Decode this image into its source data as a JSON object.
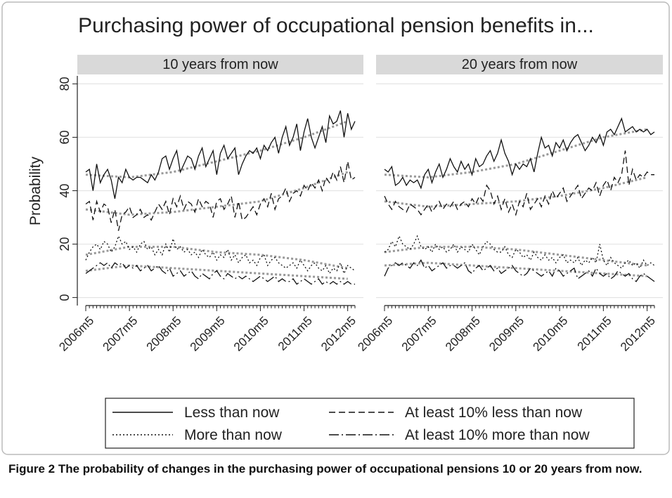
{
  "figure": {
    "title": "Purchasing power of occupational pension benefits in...",
    "ylabel": "Probability",
    "caption": "Figure 2 The probability of changes in the purchasing power of occupational pensions 10 or 20 years from now."
  },
  "chart_data": [
    {
      "type": "line",
      "panel": "10 years from now",
      "ylim": [
        -3,
        83
      ],
      "yticks": [
        0,
        20,
        40,
        60,
        80
      ],
      "grid": true,
      "x": [
        "2006m5",
        "2006m6",
        "2006m7",
        "2006m8",
        "2006m9",
        "2006m10",
        "2006m11",
        "2006m12",
        "2007m1",
        "2007m2",
        "2007m3",
        "2007m4",
        "2007m5",
        "2007m6",
        "2007m7",
        "2007m8",
        "2007m9",
        "2007m10",
        "2007m11",
        "2007m12",
        "2008m1",
        "2008m2",
        "2008m3",
        "2008m4",
        "2008m5",
        "2008m6",
        "2008m7",
        "2008m8",
        "2008m9",
        "2008m10",
        "2008m11",
        "2008m12",
        "2009m1",
        "2009m2",
        "2009m3",
        "2009m4",
        "2009m5",
        "2009m6",
        "2009m7",
        "2009m8",
        "2009m9",
        "2009m10",
        "2009m11",
        "2009m12",
        "2010m1",
        "2010m2",
        "2010m3",
        "2010m4",
        "2010m5",
        "2010m6",
        "2010m7",
        "2010m8",
        "2010m9",
        "2010m10",
        "2010m11",
        "2010m12",
        "2011m1",
        "2011m2",
        "2011m3",
        "2011m4",
        "2011m5",
        "2011m6",
        "2011m7",
        "2011m8",
        "2011m9",
        "2011m10",
        "2011m11",
        "2011m12",
        "2012m1",
        "2012m2",
        "2012m3",
        "2012m4",
        "2012m5",
        "2012m6",
        "2012m7"
      ],
      "xticks": [
        "2006m5",
        "2007m5",
        "2008m5",
        "2009m5",
        "2010m5",
        "2011m5",
        "2012m5"
      ],
      "trend_color": "#999999",
      "series": [
        {
          "name": "Less than now",
          "color": "#111111",
          "dash": "none",
          "values": [
            47,
            48,
            40,
            50,
            43,
            46,
            48,
            44,
            37,
            45,
            43,
            48,
            45,
            44,
            45,
            45,
            44,
            43,
            46,
            44,
            47,
            52,
            53,
            48,
            52,
            55,
            47,
            50,
            53,
            52,
            48,
            53,
            56,
            49,
            52,
            55,
            46,
            54,
            57,
            52,
            54,
            56,
            46,
            50,
            53,
            55,
            54,
            56,
            52,
            57,
            55,
            58,
            60,
            54,
            60,
            64,
            57,
            60,
            65,
            55,
            62,
            67,
            60,
            56,
            60,
            64,
            58,
            68,
            65,
            66,
            70,
            60,
            69,
            63,
            66
          ],
          "trend": [
            46,
            45,
            47,
            51,
            55,
            60,
            66
          ]
        },
        {
          "name": "At least 10% less than now",
          "color": "#111111",
          "dash": "9,5",
          "values": [
            35,
            36,
            29,
            36,
            32,
            35,
            34,
            28,
            33,
            25,
            31,
            32,
            34,
            30,
            31,
            33,
            30,
            31,
            29,
            32,
            35,
            33,
            36,
            31,
            37,
            34,
            38,
            33,
            36,
            35,
            32,
            37,
            34,
            36,
            35,
            30,
            36,
            37,
            33,
            35,
            38,
            30,
            36,
            29,
            30,
            32,
            34,
            31,
            35,
            37,
            34,
            39,
            33,
            37,
            38,
            41,
            36,
            39,
            40,
            38,
            42,
            40,
            43,
            41,
            44,
            40,
            45,
            43,
            47,
            44,
            49,
            43,
            51,
            44,
            45
          ],
          "trend": [
            33,
            31,
            32,
            34,
            36,
            41,
            47
          ]
        },
        {
          "name": "More than now",
          "color": "#111111",
          "dash": "2,3",
          "values": [
            14,
            17,
            19,
            20,
            18,
            21,
            20,
            17,
            19,
            23,
            20,
            21,
            18,
            19,
            17,
            20,
            21,
            18,
            19,
            16,
            18,
            16,
            20,
            17,
            22,
            18,
            19,
            17,
            18,
            16,
            17,
            15,
            18,
            16,
            15,
            17,
            14,
            16,
            15,
            18,
            14,
            16,
            13,
            15,
            16,
            13,
            14,
            12,
            15,
            16,
            12,
            14,
            15,
            13,
            12,
            11,
            12,
            13,
            11,
            14,
            12,
            10,
            12,
            13,
            11,
            10,
            12,
            9,
            11,
            10,
            13,
            9,
            12,
            11,
            10
          ],
          "trend": [
            16,
            19,
            19,
            17,
            16,
            14,
            11
          ]
        },
        {
          "name": "At least 10% more than now",
          "color": "#111111",
          "dash": "14,4,2,4",
          "values": [
            9,
            10,
            11,
            12,
            13,
            12,
            13,
            11,
            13,
            12,
            13,
            11,
            12,
            11,
            12,
            10,
            11,
            12,
            10,
            11,
            12,
            10,
            9,
            11,
            8,
            9,
            10,
            8,
            9,
            10,
            8,
            7,
            9,
            8,
            7,
            9,
            10,
            8,
            7,
            9,
            8,
            7,
            8,
            7,
            8,
            7,
            6,
            7,
            8,
            7,
            6,
            7,
            8,
            6,
            7,
            6,
            6,
            7,
            5,
            6,
            7,
            6,
            5,
            6,
            7,
            5,
            6,
            5,
            6,
            5,
            6,
            5,
            6,
            5,
            5
          ],
          "trend": [
            10,
            12,
            11,
            10,
            9,
            8,
            7
          ]
        }
      ]
    },
    {
      "type": "line",
      "panel": "20 years from now",
      "ylim": [
        -3,
        83
      ],
      "yticks": [
        0,
        20,
        40,
        60,
        80
      ],
      "grid": true,
      "x": [
        "2006m5",
        "2006m6",
        "2006m7",
        "2006m8",
        "2006m9",
        "2006m10",
        "2006m11",
        "2006m12",
        "2007m1",
        "2007m2",
        "2007m3",
        "2007m4",
        "2007m5",
        "2007m6",
        "2007m7",
        "2007m8",
        "2007m9",
        "2007m10",
        "2007m11",
        "2007m12",
        "2008m1",
        "2008m2",
        "2008m3",
        "2008m4",
        "2008m5",
        "2008m6",
        "2008m7",
        "2008m8",
        "2008m9",
        "2008m10",
        "2008m11",
        "2008m12",
        "2009m1",
        "2009m2",
        "2009m3",
        "2009m4",
        "2009m5",
        "2009m6",
        "2009m7",
        "2009m8",
        "2009m9",
        "2009m10",
        "2009m11",
        "2009m12",
        "2010m1",
        "2010m2",
        "2010m3",
        "2010m4",
        "2010m5",
        "2010m6",
        "2010m7",
        "2010m8",
        "2010m9",
        "2010m10",
        "2010m11",
        "2010m12",
        "2011m1",
        "2011m2",
        "2011m3",
        "2011m4",
        "2011m5",
        "2011m6",
        "2011m7",
        "2011m8",
        "2011m9",
        "2011m10",
        "2011m11",
        "2011m12",
        "2012m1",
        "2012m2",
        "2012m3",
        "2012m4",
        "2012m5",
        "2012m6",
        "2012m7"
      ],
      "xticks": [
        "2006m5",
        "2007m5",
        "2008m5",
        "2009m5",
        "2010m5",
        "2011m5",
        "2012m5"
      ],
      "trend_color": "#999999",
      "series": [
        {
          "name": "Less than now",
          "color": "#111111",
          "dash": "none",
          "values": [
            48,
            47,
            49,
            42,
            43,
            45,
            42,
            44,
            43,
            44,
            41,
            46,
            48,
            43,
            47,
            50,
            45,
            48,
            52,
            49,
            47,
            51,
            48,
            50,
            46,
            52,
            49,
            50,
            53,
            55,
            51,
            54,
            59,
            54,
            51,
            46,
            50,
            48,
            50,
            49,
            52,
            47,
            54,
            60,
            56,
            57,
            53,
            58,
            56,
            59,
            55,
            58,
            60,
            61,
            58,
            55,
            57,
            60,
            58,
            61,
            57,
            62,
            63,
            61,
            64,
            67,
            62,
            63,
            64,
            62,
            63,
            62,
            63,
            61,
            62
          ],
          "trend": [
            46,
            45,
            47,
            50,
            55,
            60,
            63
          ]
        },
        {
          "name": "At least 10% less than now",
          "color": "#111111",
          "dash": "9,5",
          "values": [
            38,
            35,
            33,
            36,
            34,
            33,
            32,
            35,
            34,
            33,
            31,
            33,
            35,
            32,
            34,
            36,
            33,
            35,
            34,
            36,
            33,
            35,
            36,
            34,
            37,
            35,
            38,
            36,
            42,
            40,
            35,
            38,
            33,
            37,
            32,
            35,
            31,
            36,
            34,
            39,
            33,
            35,
            37,
            34,
            38,
            35,
            40,
            37,
            39,
            41,
            36,
            38,
            40,
            42,
            37,
            39,
            41,
            40,
            43,
            38,
            42,
            44,
            40,
            45,
            43,
            46,
            55,
            42,
            48,
            44,
            46,
            45,
            47,
            46,
            46
          ],
          "trend": [
            36,
            34,
            35,
            36,
            38,
            41,
            45
          ]
        },
        {
          "name": "More than now",
          "color": "#111111",
          "dash": "2,3",
          "values": [
            17,
            18,
            21,
            19,
            23,
            20,
            19,
            18,
            20,
            23,
            19,
            18,
            19,
            17,
            20,
            18,
            19,
            17,
            18,
            20,
            17,
            19,
            18,
            17,
            20,
            18,
            16,
            19,
            21,
            20,
            18,
            17,
            17,
            19,
            16,
            15,
            18,
            17,
            15,
            16,
            14,
            17,
            15,
            14,
            16,
            14,
            15,
            13,
            15,
            16,
            13,
            14,
            13,
            15,
            12,
            14,
            13,
            15,
            13,
            20,
            14,
            12,
            15,
            13,
            12,
            11,
            13,
            14,
            12,
            13,
            11,
            14,
            12,
            13,
            12
          ],
          "trend": [
            17,
            19,
            19,
            18,
            16,
            14,
            12
          ]
        },
        {
          "name": "At least 10% more than now",
          "color": "#111111",
          "dash": "14,4,2,4",
          "values": [
            8,
            11,
            12,
            13,
            12,
            13,
            12,
            11,
            13,
            12,
            14,
            11,
            12,
            10,
            11,
            12,
            13,
            11,
            12,
            12,
            11,
            12,
            13,
            10,
            9,
            11,
            12,
            10,
            11,
            12,
            10,
            11,
            9,
            10,
            11,
            12,
            10,
            9,
            8,
            9,
            11,
            10,
            9,
            8,
            9,
            10,
            8,
            11,
            10,
            8,
            9,
            10,
            11,
            7,
            8,
            9,
            10,
            8,
            11,
            9,
            8,
            9,
            7,
            8,
            10,
            9,
            8,
            9,
            7,
            6,
            8,
            9,
            8,
            7,
            6
          ],
          "trend": [
            12,
            13,
            12,
            11,
            10,
            9,
            8
          ]
        }
      ]
    }
  ]
}
